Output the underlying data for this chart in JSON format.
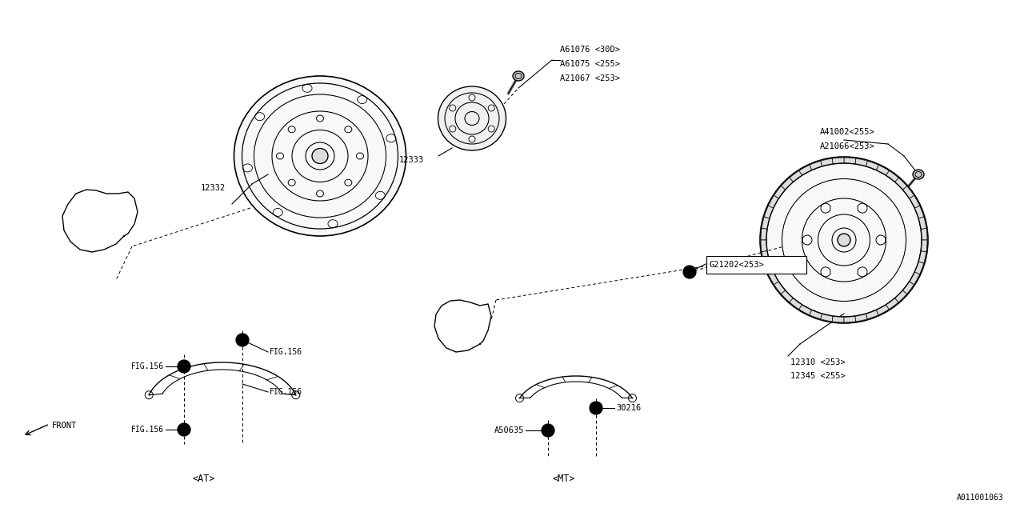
{
  "bg_color": "#ffffff",
  "line_color": "#000000",
  "text_color": "#000000",
  "font_family": "monospace",
  "fig_width": 12.8,
  "fig_height": 6.4,
  "labels": {
    "A61076": "A61076 <30D>",
    "A61075": "A61075 <255>",
    "A21067": "A21067 <253>",
    "12332": "12332",
    "12333": "12333",
    "A41002": "A41002<255>",
    "A21066": "A21066<253>",
    "G21202": "G21202<253>",
    "12310": "12310 <253>",
    "12345": "12345 <255>",
    "FIG156": "FIG.156",
    "A50635": "A50635",
    "30216": "30216",
    "AT": "<AT>",
    "MT": "<MT>",
    "FRONT": "FRONT",
    "ref": "A011001063"
  }
}
